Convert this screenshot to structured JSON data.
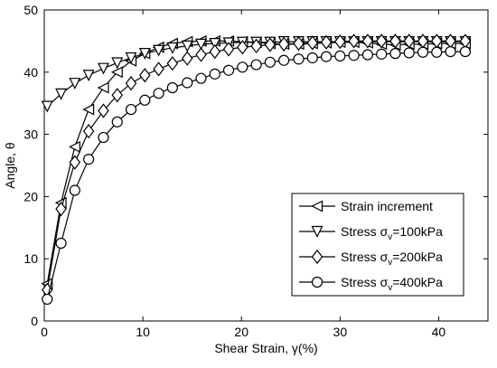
{
  "chart_data": {
    "type": "line",
    "xlabel": "Shear Strain, γ(%)",
    "ylabel": "Angle, θ",
    "xlim": [
      0,
      45
    ],
    "ylim": [
      0,
      50
    ],
    "xticks": [
      0,
      10,
      20,
      30,
      40
    ],
    "yticks": [
      0,
      10,
      20,
      30,
      40,
      50
    ],
    "grid": false,
    "legend_position": "bottom-right",
    "series": [
      {
        "name": "Strain increment",
        "marker": "triangle-left",
        "x": [
          0.3,
          1.7,
          3.1,
          4.5,
          6.0,
          7.4,
          8.8,
          10.2,
          11.6,
          13.0,
          14.5,
          15.9,
          17.3,
          18.7,
          20.1,
          21.5,
          22.9,
          24.3,
          25.8,
          27.2,
          28.6,
          30.0,
          31.4,
          32.8,
          34.2,
          35.6,
          37.0,
          38.4,
          39.8,
          41.2,
          42.7
        ],
        "y": [
          6,
          19,
          28,
          34,
          37.5,
          40,
          41.8,
          43,
          44,
          44.6,
          44.9,
          45,
          45,
          45,
          44.9,
          44.8,
          44.6,
          44.5,
          44.5,
          44.6,
          44.7,
          44.8,
          44.8,
          44.7,
          44.5,
          44.4,
          44.5,
          44.5,
          44.6,
          44.6,
          44.6
        ]
      },
      {
        "name": "Stress σv=100kPa",
        "legend_prefix": "Stress",
        "legend_sigma": "σ",
        "legend_sub": "v",
        "legend_suffix": "=100kPa",
        "marker": "triangle-down",
        "x": [
          0.3,
          1.7,
          3.1,
          4.5,
          6.0,
          7.4,
          8.8,
          10.2,
          11.6,
          13.0,
          14.5,
          15.9,
          17.3,
          18.7,
          20.1,
          21.5,
          22.9,
          24.3,
          25.8,
          27.2,
          28.6,
          30.0,
          31.4,
          32.8,
          34.2,
          35.6,
          37.0,
          38.4,
          39.8,
          41.2,
          42.7
        ],
        "y": [
          34.5,
          36.5,
          38.2,
          39.5,
          40.6,
          41.5,
          42.3,
          43,
          43.5,
          43.9,
          44.2,
          44.5,
          44.6,
          44.7,
          44.8,
          44.8,
          44.8,
          44.9,
          44.9,
          44.9,
          44.9,
          44.9,
          44.9,
          44.9,
          44.9,
          44.9,
          44.9,
          44.9,
          44.9,
          44.9,
          44.9
        ]
      },
      {
        "name": "Stress σv=200kPa",
        "legend_prefix": "Stress",
        "legend_sigma": "σ",
        "legend_sub": "v",
        "legend_suffix": "=200kPa",
        "marker": "diamond",
        "x": [
          0.3,
          1.7,
          3.1,
          4.5,
          6.0,
          7.4,
          8.8,
          10.2,
          11.6,
          13.0,
          14.5,
          15.9,
          17.3,
          18.7,
          20.1,
          21.5,
          22.9,
          24.3,
          25.8,
          27.2,
          28.6,
          30.0,
          31.4,
          32.8,
          34.2,
          35.6,
          37.0,
          38.4,
          39.8,
          41.2,
          42.7
        ],
        "y": [
          5,
          18,
          25.5,
          30.5,
          33.8,
          36.3,
          38.2,
          39.5,
          40.5,
          41.4,
          42.2,
          42.8,
          43.3,
          43.7,
          44,
          44.2,
          44.4,
          44.5,
          44.6,
          44.7,
          44.8,
          44.9,
          45,
          45,
          45,
          45,
          45,
          45,
          45,
          45,
          45
        ]
      },
      {
        "name": "Stress σv=400kPa",
        "legend_prefix": "Stress",
        "legend_sigma": "σ",
        "legend_sub": "v",
        "legend_suffix": "=400kPa",
        "marker": "circle",
        "x": [
          0.3,
          1.7,
          3.1,
          4.5,
          6.0,
          7.4,
          8.8,
          10.2,
          11.6,
          13.0,
          14.5,
          15.9,
          17.3,
          18.7,
          20.1,
          21.5,
          22.9,
          24.3,
          25.8,
          27.2,
          28.6,
          30.0,
          31.4,
          32.8,
          34.2,
          35.6,
          37.0,
          38.4,
          39.8,
          41.2,
          42.7
        ],
        "y": [
          3.5,
          12.5,
          21,
          26,
          29.5,
          32,
          34,
          35.5,
          36.6,
          37.5,
          38.3,
          39,
          39.7,
          40.3,
          40.8,
          41.2,
          41.6,
          41.9,
          42.1,
          42.3,
          42.5,
          42.6,
          42.7,
          42.8,
          42.9,
          43,
          43.1,
          43.2,
          43.2,
          43.3,
          43.3
        ]
      }
    ]
  }
}
